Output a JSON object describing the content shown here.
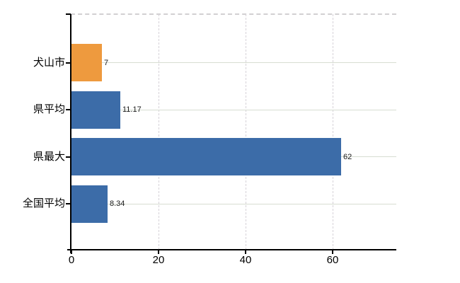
{
  "chart_data": {
    "type": "bar",
    "orientation": "horizontal",
    "title": "",
    "categories": [
      "犬山市",
      "県平均",
      "県最大",
      "全国平均"
    ],
    "values": [
      7,
      11.17,
      62,
      8.34
    ],
    "value_labels": [
      "7",
      "11.17",
      "62",
      "8.34"
    ],
    "bar_colors": [
      "#EE9A3E",
      "#3C6CA8",
      "#3C6CA8",
      "#3C6CA8"
    ],
    "x_tick_labels": [
      "0",
      "20",
      "40",
      "60"
    ],
    "x_tick_values": [
      0,
      20,
      40,
      60
    ],
    "xlim": [
      0,
      74.6
    ],
    "xlabel": "",
    "ylabel": "",
    "legend": "none",
    "grid": {
      "vertical": "dashed",
      "horizontal": "solid",
      "top_border": "dashed"
    },
    "colors": {
      "highlight_bar": "#EE9A3E",
      "default_bar": "#3C6CA8",
      "horizontal_grid": "#D7DDD2",
      "vertical_grid": "#D6D2D8",
      "axis": "#000000",
      "background": "#FFFFFF"
    }
  }
}
